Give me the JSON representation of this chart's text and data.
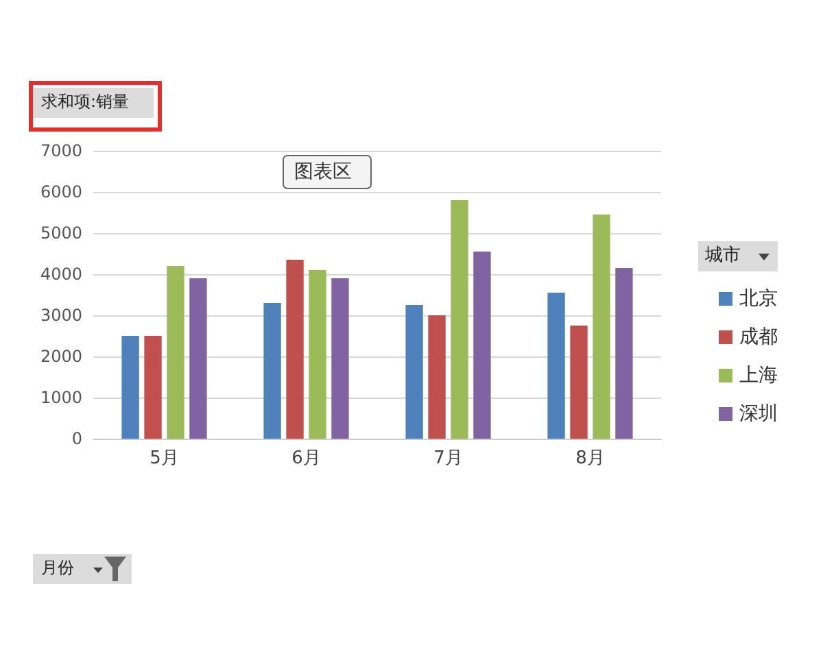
{
  "chart_data": {
    "type": "bar",
    "ylabel": "求和项:销量",
    "legend_title": "城市",
    "annotations": [
      "图表区",
      "月份"
    ],
    "categories": [
      "5月",
      "6月",
      "7月",
      "8月"
    ],
    "series": [
      {
        "name": "北京",
        "color": "#4f81bd",
        "values": [
          2500,
          3300,
          3250,
          3550
        ]
      },
      {
        "name": "成都",
        "color": "#c0504d",
        "values": [
          2500,
          4350,
          3000,
          2750
        ]
      },
      {
        "name": "上海",
        "color": "#9bbb59",
        "values": [
          4200,
          4100,
          5800,
          5450
        ]
      },
      {
        "name": "深圳",
        "color": "#8064a2",
        "values": [
          3900,
          3900,
          4550,
          4150
        ]
      }
    ],
    "ylim": [
      0,
      7000
    ],
    "yticks": [
      0,
      1000,
      2000,
      3000,
      4000,
      5000,
      6000,
      7000
    ],
    "grid": "y",
    "legend": "right"
  }
}
